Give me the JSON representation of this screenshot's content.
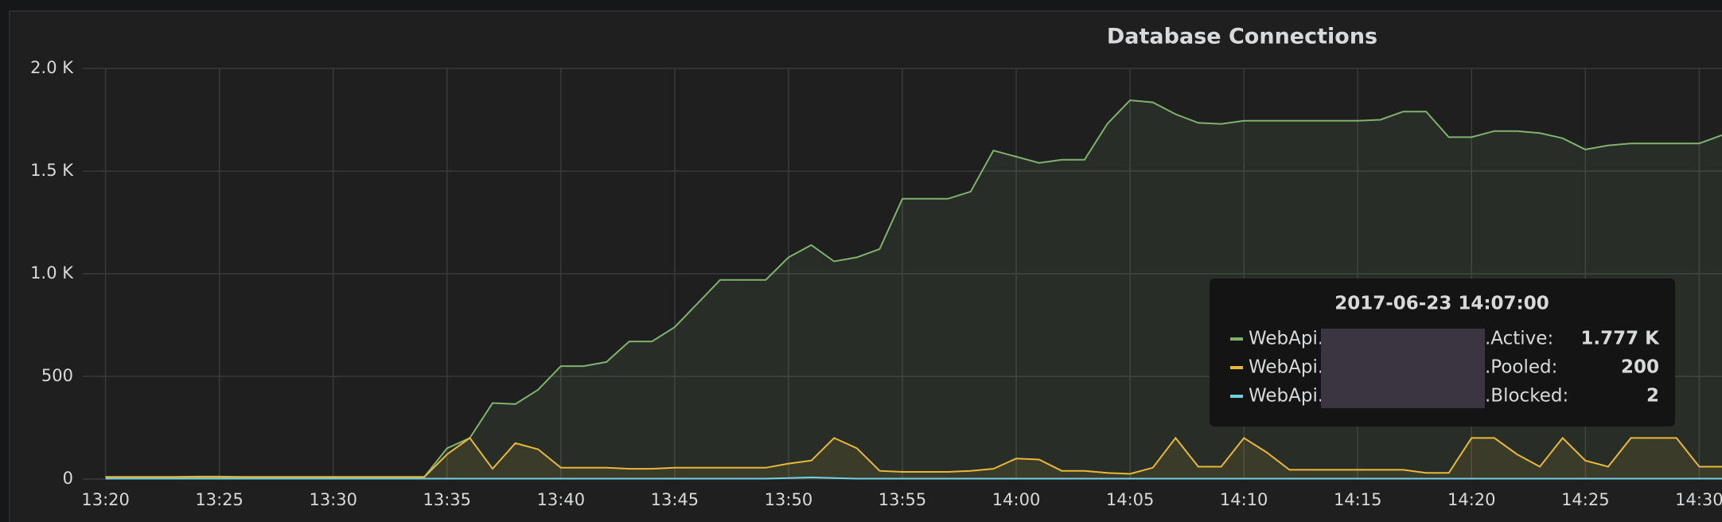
{
  "chart_data": {
    "type": "line",
    "title": "Database Connections",
    "x": [
      "13:20",
      "13:21",
      "13:22",
      "13:23",
      "13:24",
      "13:25",
      "13:26",
      "13:27",
      "13:28",
      "13:29",
      "13:30",
      "13:31",
      "13:32",
      "13:33",
      "13:34",
      "13:35",
      "13:36",
      "13:37",
      "13:38",
      "13:39",
      "13:40",
      "13:41",
      "13:42",
      "13:43",
      "13:44",
      "13:45",
      "13:46",
      "13:47",
      "13:48",
      "13:49",
      "13:50",
      "13:51",
      "13:52",
      "13:53",
      "13:54",
      "13:55",
      "13:56",
      "13:57",
      "13:58",
      "13:59",
      "14:00",
      "14:01",
      "14:02",
      "14:03",
      "14:04",
      "14:05",
      "14:06",
      "14:07",
      "14:08",
      "14:09",
      "14:10",
      "14:11",
      "14:12",
      "14:13",
      "14:14",
      "14:15",
      "14:16",
      "14:17",
      "14:18",
      "14:19",
      "14:20",
      "14:21",
      "14:22",
      "14:23",
      "14:24",
      "14:25",
      "14:26",
      "14:27",
      "14:28",
      "14:29",
      "14:30",
      "14:31"
    ],
    "series": [
      {
        "color": "#7eb26d",
        "values": [
          10,
          10,
          10,
          10,
          12,
          12,
          10,
          10,
          10,
          10,
          10,
          10,
          10,
          10,
          10,
          150,
          200,
          370,
          365,
          435,
          550,
          550,
          570,
          670,
          670,
          740,
          855,
          970,
          970,
          970,
          1080,
          1140,
          1060,
          1080,
          1120,
          1365,
          1365,
          1365,
          1400,
          1600,
          1570,
          1540,
          1555,
          1555,
          1730,
          1845,
          1835,
          1777,
          1735,
          1730,
          1745,
          1745,
          1745,
          1745,
          1745,
          1745,
          1750,
          1790,
          1790,
          1665,
          1665,
          1695,
          1695,
          1685,
          1660,
          1605,
          1625,
          1635,
          1635,
          1635,
          1635,
          1675
        ]
      },
      {
        "color": "#eab839",
        "values": [
          10,
          10,
          10,
          10,
          10,
          10,
          10,
          10,
          10,
          10,
          10,
          10,
          10,
          10,
          10,
          120,
          200,
          50,
          175,
          145,
          55,
          55,
          55,
          50,
          50,
          55,
          55,
          55,
          55,
          55,
          75,
          90,
          200,
          150,
          40,
          35,
          35,
          35,
          40,
          50,
          100,
          95,
          40,
          40,
          30,
          25,
          55,
          200,
          60,
          60,
          200,
          130,
          45,
          45,
          45,
          45,
          45,
          45,
          30,
          30,
          200,
          200,
          120,
          60,
          200,
          90,
          60,
          200,
          200,
          200,
          60,
          60
        ]
      },
      {
        "color": "#6ed0e0",
        "values": [
          2,
          2,
          2,
          2,
          2,
          2,
          2,
          2,
          2,
          2,
          2,
          2,
          2,
          2,
          2,
          2,
          2,
          2,
          2,
          2,
          2,
          2,
          2,
          2,
          2,
          2,
          2,
          2,
          2,
          2,
          5,
          8,
          5,
          2,
          2,
          2,
          2,
          2,
          2,
          2,
          2,
          2,
          2,
          2,
          2,
          2,
          2,
          2,
          2,
          2,
          2,
          2,
          2,
          2,
          2,
          2,
          2,
          2,
          2,
          2,
          2,
          2,
          2,
          2,
          2,
          2,
          2,
          2,
          2,
          2,
          2,
          2
        ]
      }
    ],
    "xlim": [
      "13:19",
      "14:31"
    ],
    "xticks": [
      "13:20",
      "13:25",
      "13:30",
      "13:35",
      "13:40",
      "13:45",
      "13:50",
      "13:55",
      "14:00",
      "14:05",
      "14:10",
      "14:15",
      "14:20",
      "14:25",
      "14:30"
    ],
    "ylim": [
      0,
      2000
    ],
    "yticks": [
      0,
      500,
      {
        "value": 1000,
        "label": "1.0 K"
      },
      {
        "value": 1500,
        "label": "1.5 K"
      },
      {
        "value": 2000,
        "label": "2.0 K"
      }
    ],
    "grid": true,
    "fill": true,
    "tooltip": {
      "title": "2017-06-23 14:07:00",
      "rows": [
        {
          "prefix": "WebApi.",
          "suffix": ".Active:",
          "value": "1.777 K"
        },
        {
          "prefix": "WebApi.",
          "suffix": ".Pooled:",
          "value": "200"
        },
        {
          "prefix": "WebApi.",
          "suffix": ".Blocked:",
          "value": "2"
        }
      ]
    }
  }
}
